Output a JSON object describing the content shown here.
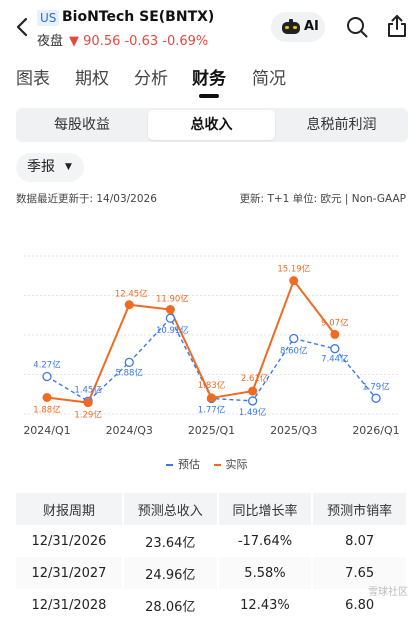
{
  "header": {
    "market": "US",
    "title": "BioNTech SE(BNTX)",
    "session": "夜盘",
    "price": "▼ 90.56 -0.63 -0.69%",
    "ai_label": "AI"
  },
  "tabs": [
    "图表",
    "期权",
    "分析",
    "财务",
    "简况"
  ],
  "active_tab": "财务",
  "segments": [
    "每股收益",
    "总收入",
    "息税前利润"
  ],
  "active_segment": "总收入",
  "period": "季报",
  "updated": "数据最近更新于: 14/03/2026",
  "meta": "更新: T+1  单位: 欧元 | Non-GAAP",
  "colors": {
    "estimate": "#3a78e6",
    "actual": "#f06a22",
    "negative": "#e8483c"
  },
  "chart_data": {
    "type": "line",
    "x": [
      "2024/Q1",
      "2024/Q2",
      "2024/Q3",
      "2024/Q4",
      "2025/Q1",
      "2025/Q2",
      "2025/Q3",
      "2025/Q4",
      "2026/Q1"
    ],
    "x_tick_labels": [
      "2024/Q1",
      "2024/Q3",
      "2025/Q1",
      "2025/Q3",
      "2026/Q1"
    ],
    "ylim": [
      0,
      18
    ],
    "series": [
      {
        "name": "预估",
        "style": "dashed",
        "values": [
          4.27,
          1.45,
          5.88,
          10.91,
          1.77,
          1.49,
          8.6,
          7.44,
          1.79
        ],
        "labels": [
          "4.27亿",
          "1.45亿",
          "5.88亿",
          "10.91亿",
          "1.77亿",
          "1.49亿",
          "8.60亿",
          "7.44亿",
          "1.79亿"
        ]
      },
      {
        "name": "实际",
        "style": "solid",
        "values": [
          1.88,
          1.29,
          12.45,
          11.9,
          1.83,
          2.61,
          15.19,
          9.07,
          null
        ],
        "labels": [
          "1.88亿",
          "1.29亿",
          "12.45亿",
          "11.90亿",
          "1.83亿",
          "2.61亿",
          "15.19亿",
          "9.07亿",
          ""
        ]
      }
    ]
  },
  "table": {
    "headers": [
      "财报周期",
      "预测总收入",
      "同比增长率",
      "预测市销率"
    ],
    "rows": [
      [
        "12/31/2026",
        "23.64亿",
        "-17.64%",
        "8.07"
      ],
      [
        "12/31/2027",
        "24.96亿",
        "5.58%",
        "7.65"
      ],
      [
        "12/31/2028",
        "28.06亿",
        "12.43%",
        "6.80"
      ]
    ]
  },
  "watermark": "雪球社区"
}
